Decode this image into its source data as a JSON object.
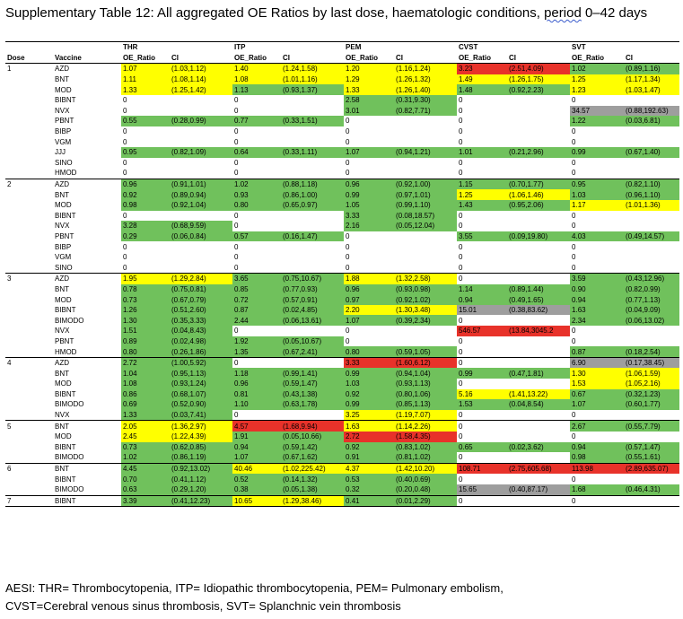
{
  "title": {
    "prefix": "Supplementary Table 12: All aggregated OE Ratios by last dose, haematologic conditions, ",
    "spell": "period",
    "suffix": " 0–42 days"
  },
  "header": {
    "groups": [
      "THR",
      "ITP",
      "PEM",
      "CVST",
      "SVT"
    ],
    "dose": "Dose",
    "vaccine": "Vaccine",
    "oe": "OE_Ratio",
    "ci": "CI"
  },
  "colors": {
    "yellow": "#ffff00",
    "green": "#70c15c",
    "red": "#e8322a",
    "grey": "#9e9e9e"
  },
  "rows": [
    {
      "d": "1",
      "v": "AZD",
      "c": [
        [
          "1.07",
          "(1.03,1.12)",
          "y"
        ],
        [
          "1.40",
          "(1.24,1.58)",
          "y"
        ],
        [
          "1.20",
          "(1.16,1.24)",
          "y"
        ],
        [
          "3.23",
          "(2.51,4.09)",
          "r"
        ],
        [
          "1.02",
          "(0.89,1.16)",
          "g"
        ]
      ]
    },
    {
      "d": "",
      "v": "BNT",
      "c": [
        [
          "1.11",
          "(1.08,1.14)",
          "y"
        ],
        [
          "1.08",
          "(1.01,1.16)",
          "y"
        ],
        [
          "1.29",
          "(1.26,1.32)",
          "y"
        ],
        [
          "1.49",
          "(1.26,1.75)",
          "y"
        ],
        [
          "1.25",
          "(1.17,1.34)",
          "y"
        ]
      ]
    },
    {
      "d": "",
      "v": "MOD",
      "c": [
        [
          "1.33",
          "(1.25,1.42)",
          "y"
        ],
        [
          "1.13",
          "(0.93,1.37)",
          "g"
        ],
        [
          "1.33",
          "(1.26,1.40)",
          "y"
        ],
        [
          "1.48",
          "(0.92,2.23)",
          "g"
        ],
        [
          "1.23",
          "(1.03,1.47)",
          "y"
        ]
      ]
    },
    {
      "d": "",
      "v": "BIBNT",
      "c": [
        [
          "0",
          "",
          ""
        ],
        [
          "0",
          "",
          ""
        ],
        [
          "2.58",
          "(0.31,9.30)",
          "g"
        ],
        [
          "0",
          "",
          ""
        ],
        [
          "0",
          "",
          ""
        ]
      ]
    },
    {
      "d": "",
      "v": "NVX",
      "c": [
        [
          "0",
          "",
          ""
        ],
        [
          "0",
          "",
          ""
        ],
        [
          "3.01",
          "(0.82,7.71)",
          "g"
        ],
        [
          "0",
          "",
          ""
        ],
        [
          "34.57",
          "(0.88,192.63)",
          "gr"
        ]
      ]
    },
    {
      "d": "",
      "v": "PBNT",
      "c": [
        [
          "0.55",
          "(0.28,0.99)",
          "g"
        ],
        [
          "0.77",
          "(0.33,1.51)",
          "g"
        ],
        [
          "0",
          "",
          ""
        ],
        [
          "0",
          "",
          ""
        ],
        [
          "1.22",
          "(0.03,6.81)",
          "g"
        ]
      ]
    },
    {
      "d": "",
      "v": "BIBP",
      "c": [
        [
          "0",
          "",
          ""
        ],
        [
          "0",
          "",
          ""
        ],
        [
          "0",
          "",
          ""
        ],
        [
          "0",
          "",
          ""
        ],
        [
          "0",
          "",
          ""
        ]
      ]
    },
    {
      "d": "",
      "v": "VGM",
      "c": [
        [
          "0",
          "",
          ""
        ],
        [
          "0",
          "",
          ""
        ],
        [
          "0",
          "",
          ""
        ],
        [
          "0",
          "",
          ""
        ],
        [
          "0",
          "",
          ""
        ]
      ]
    },
    {
      "d": "",
      "v": "JJJ",
      "c": [
        [
          "0.95",
          "(0.82,1.09)",
          "g"
        ],
        [
          "0.64",
          "(0.33,1.11)",
          "g"
        ],
        [
          "1.07",
          "(0.94,1.21)",
          "g"
        ],
        [
          "1.01",
          "(0.21,2.96)",
          "g"
        ],
        [
          "0.99",
          "(0.67,1.40)",
          "g"
        ]
      ]
    },
    {
      "d": "",
      "v": "SINO",
      "c": [
        [
          "0",
          "",
          ""
        ],
        [
          "0",
          "",
          ""
        ],
        [
          "0",
          "",
          ""
        ],
        [
          "0",
          "",
          ""
        ],
        [
          "0",
          "",
          ""
        ]
      ]
    },
    {
      "d": "",
      "v": "HMOD",
      "c": [
        [
          "0",
          "",
          ""
        ],
        [
          "0",
          "",
          ""
        ],
        [
          "0",
          "",
          ""
        ],
        [
          "0",
          "",
          ""
        ],
        [
          "0",
          "",
          ""
        ]
      ]
    },
    {
      "d": "2",
      "v": "AZD",
      "c": [
        [
          "0.96",
          "(0.91,1.01)",
          "g"
        ],
        [
          "1.02",
          "(0.88,1.18)",
          "g"
        ],
        [
          "0.96",
          "(0.92,1.00)",
          "g"
        ],
        [
          "1.15",
          "(0.70,1.77)",
          "g"
        ],
        [
          "0.95",
          "(0.82,1.10)",
          "g"
        ]
      ]
    },
    {
      "d": "",
      "v": "BNT",
      "c": [
        [
          "0.92",
          "(0.89,0.94)",
          "g"
        ],
        [
          "0.93",
          "(0.86,1.00)",
          "g"
        ],
        [
          "0.99",
          "(0.97,1.01)",
          "g"
        ],
        [
          "1.25",
          "(1.06,1.46)",
          "y"
        ],
        [
          "1.03",
          "(0.96,1.10)",
          "g"
        ]
      ]
    },
    {
      "d": "",
      "v": "MOD",
      "c": [
        [
          "0.98",
          "(0.92,1.04)",
          "g"
        ],
        [
          "0.80",
          "(0.65,0.97)",
          "g"
        ],
        [
          "1.05",
          "(0.99,1.10)",
          "g"
        ],
        [
          "1.43",
          "(0.95,2.06)",
          "g"
        ],
        [
          "1.17",
          "(1.01,1.36)",
          "y"
        ]
      ]
    },
    {
      "d": "",
      "v": "BIBNT",
      "c": [
        [
          "0",
          "",
          ""
        ],
        [
          "0",
          "",
          ""
        ],
        [
          "3.33",
          "(0.08,18.57)",
          "g"
        ],
        [
          "0",
          "",
          ""
        ],
        [
          "0",
          "",
          ""
        ]
      ]
    },
    {
      "d": "",
      "v": "NVX",
      "c": [
        [
          "3.28",
          "(0.68,9.59)",
          "g"
        ],
        [
          "0",
          "",
          ""
        ],
        [
          "2.16",
          "(0.05,12.04)",
          "g"
        ],
        [
          "0",
          "",
          ""
        ],
        [
          "0",
          "",
          ""
        ]
      ]
    },
    {
      "d": "",
      "v": "PBNT",
      "c": [
        [
          "0.29",
          "(0.06,0.84)",
          "g"
        ],
        [
          "0.57",
          "(0.16,1.47)",
          "g"
        ],
        [
          "0",
          "",
          ""
        ],
        [
          "3.55",
          "(0.09,19.80)",
          "g"
        ],
        [
          "4.03",
          "(0.49,14.57)",
          "g"
        ]
      ]
    },
    {
      "d": "",
      "v": "BIBP",
      "c": [
        [
          "0",
          "",
          ""
        ],
        [
          "0",
          "",
          ""
        ],
        [
          "0",
          "",
          ""
        ],
        [
          "0",
          "",
          ""
        ],
        [
          "0",
          "",
          ""
        ]
      ]
    },
    {
      "d": "",
      "v": "VGM",
      "c": [
        [
          "0",
          "",
          ""
        ],
        [
          "0",
          "",
          ""
        ],
        [
          "0",
          "",
          ""
        ],
        [
          "0",
          "",
          ""
        ],
        [
          "0",
          "",
          ""
        ]
      ]
    },
    {
      "d": "",
      "v": "SINO",
      "c": [
        [
          "0",
          "",
          ""
        ],
        [
          "0",
          "",
          ""
        ],
        [
          "0",
          "",
          ""
        ],
        [
          "0",
          "",
          ""
        ],
        [
          "0",
          "",
          ""
        ]
      ]
    },
    {
      "d": "3",
      "v": "AZD",
      "c": [
        [
          "1.95",
          "(1.29,2.84)",
          "y"
        ],
        [
          "3.65",
          "(0.75,10.67)",
          "g"
        ],
        [
          "1.88",
          "(1.32,2.58)",
          "y"
        ],
        [
          "0",
          "",
          ""
        ],
        [
          "3.59",
          "(0.43,12.96)",
          "g"
        ]
      ]
    },
    {
      "d": "",
      "v": "BNT",
      "c": [
        [
          "0.78",
          "(0.75,0.81)",
          "g"
        ],
        [
          "0.85",
          "(0.77,0.93)",
          "g"
        ],
        [
          "0.96",
          "(0.93,0.98)",
          "g"
        ],
        [
          "1.14",
          "(0.89,1.44)",
          "g"
        ],
        [
          "0.90",
          "(0.82,0.99)",
          "g"
        ]
      ]
    },
    {
      "d": "",
      "v": "MOD",
      "c": [
        [
          "0.73",
          "(0.67,0.79)",
          "g"
        ],
        [
          "0.72",
          "(0.57,0.91)",
          "g"
        ],
        [
          "0.97",
          "(0.92,1.02)",
          "g"
        ],
        [
          "0.94",
          "(0.49,1.65)",
          "g"
        ],
        [
          "0.94",
          "(0.77,1.13)",
          "g"
        ]
      ]
    },
    {
      "d": "",
      "v": "BIBNT",
      "c": [
        [
          "1.26",
          "(0.51,2.60)",
          "g"
        ],
        [
          "0.87",
          "(0.02,4.85)",
          "g"
        ],
        [
          "2.20",
          "(1.30,3.48)",
          "y"
        ],
        [
          "15.01",
          "(0.38,83.62)",
          "gr"
        ],
        [
          "1.63",
          "(0.04,9.09)",
          "g"
        ]
      ]
    },
    {
      "d": "",
      "v": "BIMODO",
      "c": [
        [
          "1.30",
          "(0.35,3.33)",
          "g"
        ],
        [
          "2.44",
          "(0.06,13.61)",
          "g"
        ],
        [
          "1.07",
          "(0.39,2.34)",
          "g"
        ],
        [
          "0",
          "",
          ""
        ],
        [
          "2.34",
          "(0.06,13.02)",
          "g"
        ]
      ]
    },
    {
      "d": "",
      "v": "NVX",
      "c": [
        [
          "1.51",
          "(0.04,8.43)",
          "g"
        ],
        [
          "0",
          "",
          ""
        ],
        [
          "0",
          "",
          ""
        ],
        [
          "546.57",
          "(13.84,3045.2",
          "r"
        ],
        [
          "0",
          "",
          ""
        ]
      ]
    },
    {
      "d": "",
      "v": "PBNT",
      "c": [
        [
          "0.89",
          "(0.02,4.98)",
          "g"
        ],
        [
          "1.92",
          "(0.05,10.67)",
          "g"
        ],
        [
          "0",
          "",
          ""
        ],
        [
          "0",
          "",
          ""
        ],
        [
          "0",
          "",
          ""
        ]
      ]
    },
    {
      "d": "",
      "v": "HMOD",
      "c": [
        [
          "0.80",
          "(0.26,1.86)",
          "g"
        ],
        [
          "1.35",
          "(0.67,2.41)",
          "g"
        ],
        [
          "0.80",
          "(0.59,1.05)",
          "g"
        ],
        [
          "0",
          "",
          ""
        ],
        [
          "0.87",
          "(0.18,2.54)",
          "g"
        ]
      ]
    },
    {
      "d": "4",
      "v": "AZD",
      "c": [
        [
          "2.72",
          "(1.00,5.92)",
          "g"
        ],
        [
          "0",
          "",
          ""
        ],
        [
          "3.33",
          "(1.60,6.12)",
          "r"
        ],
        [
          "0",
          "",
          ""
        ],
        [
          "6.90",
          "(0.17,38.45)",
          "gr"
        ]
      ]
    },
    {
      "d": "",
      "v": "BNT",
      "c": [
        [
          "1.04",
          "(0.95,1.13)",
          "g"
        ],
        [
          "1.18",
          "(0.99,1.41)",
          "g"
        ],
        [
          "0.99",
          "(0.94,1.04)",
          "g"
        ],
        [
          "0.99",
          "(0.47,1.81)",
          "g"
        ],
        [
          "1.30",
          "(1.06,1.59)",
          "y"
        ]
      ]
    },
    {
      "d": "",
      "v": "MOD",
      "c": [
        [
          "1.08",
          "(0.93,1.24)",
          "g"
        ],
        [
          "0.96",
          "(0.59,1.47)",
          "g"
        ],
        [
          "1.03",
          "(0.93,1.13)",
          "g"
        ],
        [
          "0",
          "",
          ""
        ],
        [
          "1.53",
          "(1.05,2.16)",
          "y"
        ]
      ]
    },
    {
      "d": "",
      "v": "BIBNT",
      "c": [
        [
          "0.86",
          "(0.68,1.07)",
          "g"
        ],
        [
          "0.81",
          "(0.43,1.38)",
          "g"
        ],
        [
          "0.92",
          "(0.80,1.06)",
          "g"
        ],
        [
          "5.16",
          "(1.41,13.22)",
          "y"
        ],
        [
          "0.67",
          "(0.32,1.23)",
          "g"
        ]
      ]
    },
    {
      "d": "",
      "v": "BIMODO",
      "c": [
        [
          "0.69",
          "(0.52,0.90)",
          "g"
        ],
        [
          "1.10",
          "(0.63,1.78)",
          "g"
        ],
        [
          "0.99",
          "(0.85,1.13)",
          "g"
        ],
        [
          "1.53",
          "(0.04,8.54)",
          "g"
        ],
        [
          "1.07",
          "(0.60,1.77)",
          "g"
        ]
      ]
    },
    {
      "d": "",
      "v": "NVX",
      "c": [
        [
          "1.33",
          "(0.03,7.41)",
          "g"
        ],
        [
          "0",
          "",
          ""
        ],
        [
          "3.25",
          "(1.19,7.07)",
          "y"
        ],
        [
          "0",
          "",
          ""
        ],
        [
          "0",
          "",
          ""
        ]
      ]
    },
    {
      "d": "5",
      "v": "BNT",
      "c": [
        [
          "2.05",
          "(1.36,2.97)",
          "y"
        ],
        [
          "4.57",
          "(1.68,9.94)",
          "r"
        ],
        [
          "1.63",
          "(1.14,2.26)",
          "y"
        ],
        [
          "0",
          "",
          ""
        ],
        [
          "2.67",
          "(0.55,7.79)",
          "g"
        ]
      ]
    },
    {
      "d": "",
      "v": "MOD",
      "c": [
        [
          "2.45",
          "(1.22,4.39)",
          "y"
        ],
        [
          "1.91",
          "(0.05,10.66)",
          "g"
        ],
        [
          "2.72",
          "(1.58,4.35)",
          "r"
        ],
        [
          "0",
          "",
          ""
        ],
        [
          "0",
          "",
          ""
        ]
      ]
    },
    {
      "d": "",
      "v": "BIBNT",
      "c": [
        [
          "0.73",
          "(0.62,0.85)",
          "g"
        ],
        [
          "0.94",
          "(0.59,1.42)",
          "g"
        ],
        [
          "0.92",
          "(0.83,1.02)",
          "g"
        ],
        [
          "0.65",
          "(0.02,3.62)",
          "g"
        ],
        [
          "0.94",
          "(0.57,1.47)",
          "g"
        ]
      ]
    },
    {
      "d": "",
      "v": "BIMODO",
      "c": [
        [
          "1.02",
          "(0.86,1.19)",
          "g"
        ],
        [
          "1.07",
          "(0.67,1.62)",
          "g"
        ],
        [
          "0.91",
          "(0.81,1.02)",
          "g"
        ],
        [
          "0",
          "",
          ""
        ],
        [
          "0.98",
          "(0.55,1.61)",
          "g"
        ]
      ]
    },
    {
      "d": "6",
      "v": "BNT",
      "c": [
        [
          "4.45",
          "(0.92,13.02)",
          "g"
        ],
        [
          "40.46",
          "(1.02,225.42)",
          "y"
        ],
        [
          "4.37",
          "(1.42,10.20)",
          "y"
        ],
        [
          "108.71",
          "(2.75,605.68)",
          "r"
        ],
        [
          "113.98",
          "(2.89,635.07)",
          "r"
        ]
      ]
    },
    {
      "d": "",
      "v": "BIBNT",
      "c": [
        [
          "0.70",
          "(0.41,1.12)",
          "g"
        ],
        [
          "0.52",
          "(0.14,1.32)",
          "g"
        ],
        [
          "0.53",
          "(0.40,0.69)",
          "g"
        ],
        [
          "0",
          "",
          ""
        ],
        [
          "0",
          "",
          ""
        ]
      ]
    },
    {
      "d": "",
      "v": "BIMODO",
      "c": [
        [
          "0.63",
          "(0.29,1.20)",
          "g"
        ],
        [
          "0.38",
          "(0.05,1.38)",
          "g"
        ],
        [
          "0.32",
          "(0.20,0.48)",
          "g"
        ],
        [
          "15.65",
          "(0.40,87.17)",
          "gr"
        ],
        [
          "1.68",
          "(0.46,4.31)",
          "g"
        ]
      ]
    },
    {
      "d": "7",
      "v": "BIBNT",
      "c": [
        [
          "3.39",
          "(0.41,12.23)",
          "g"
        ],
        [
          "10.65",
          "(1.29,38.46)",
          "y"
        ],
        [
          "0.41",
          "(0.01,2.29)",
          "g"
        ],
        [
          "0",
          "",
          ""
        ],
        [
          "0",
          "",
          ""
        ]
      ]
    }
  ],
  "footnote": {
    "line1": "AESI: THR= Thrombocytopenia, ITP= Idiopathic thrombocytopenia, PEM= Pulmonary embolism,",
    "line2": "CVST=Cerebral venous sinus thrombosis, SVT= Splanchnic vein thrombosis"
  }
}
